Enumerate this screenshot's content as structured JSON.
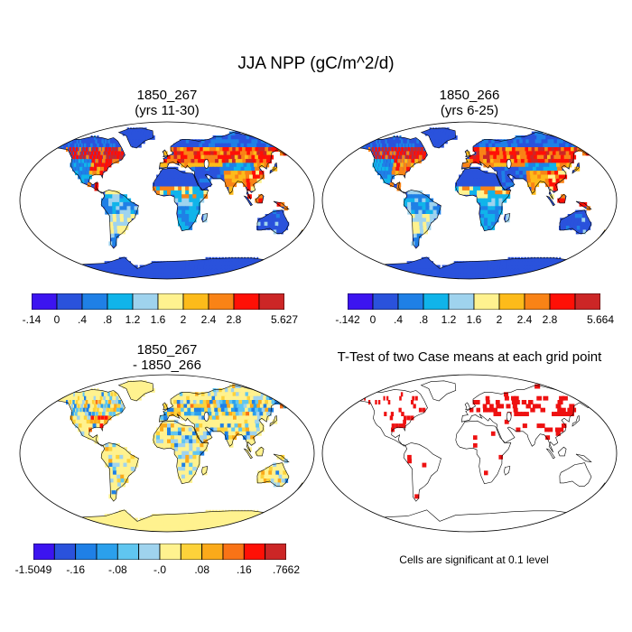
{
  "main_title": "JJA NPP (gC/m^2/d)",
  "panels": [
    {
      "id": "p1",
      "title_lines": [
        "1850_267",
        "(yrs 11-30)"
      ],
      "colorbar": {
        "colors": [
          "#3c14f0",
          "#2a52dc",
          "#1f80e6",
          "#10b4ea",
          "#9fd3ee",
          "#fff28f",
          "#fdbb1a",
          "#f98316",
          "#ff1006",
          "#cc2626"
        ],
        "labels": [
          "-.14",
          "0",
          ".4",
          ".8",
          "1.2",
          "1.6",
          "2",
          "2.4",
          "2.8",
          "5.627"
        ]
      },
      "style": "npp"
    },
    {
      "id": "p2",
      "title_lines": [
        "1850_266",
        "(yrs 6-25)"
      ],
      "colorbar": {
        "colors": [
          "#3c14f0",
          "#2a52dc",
          "#1f80e6",
          "#10b4ea",
          "#9fd3ee",
          "#fff28f",
          "#fdbb1a",
          "#f98316",
          "#ff1006",
          "#cc2626"
        ],
        "labels": [
          "-.142",
          "0",
          ".4",
          ".8",
          "1.2",
          "1.6",
          "2",
          "2.4",
          "2.8",
          "5.664"
        ]
      },
      "style": "npp"
    },
    {
      "id": "p3",
      "title_lines": [
        "1850_267",
        "- 1850_266"
      ],
      "colorbar": {
        "colors": [
          "#3c14f0",
          "#2a52dc",
          "#1f80e6",
          "#2ba0ec",
          "#60c6f0",
          "#9fd3ee",
          "#fff28f",
          "#fdd23a",
          "#fbaa1a",
          "#f97316",
          "#ff1006",
          "#cc2626"
        ],
        "labels": [
          "-1.5049",
          "-.16",
          "-.08",
          "-.0",
          ".08",
          ".16",
          ".7662"
        ]
      },
      "style": "diff"
    },
    {
      "id": "p4",
      "title_lines": [
        "T-Test of two Case means at each grid point"
      ],
      "note": "Cells are significant at 0.1 level",
      "style": "ttest"
    }
  ]
}
